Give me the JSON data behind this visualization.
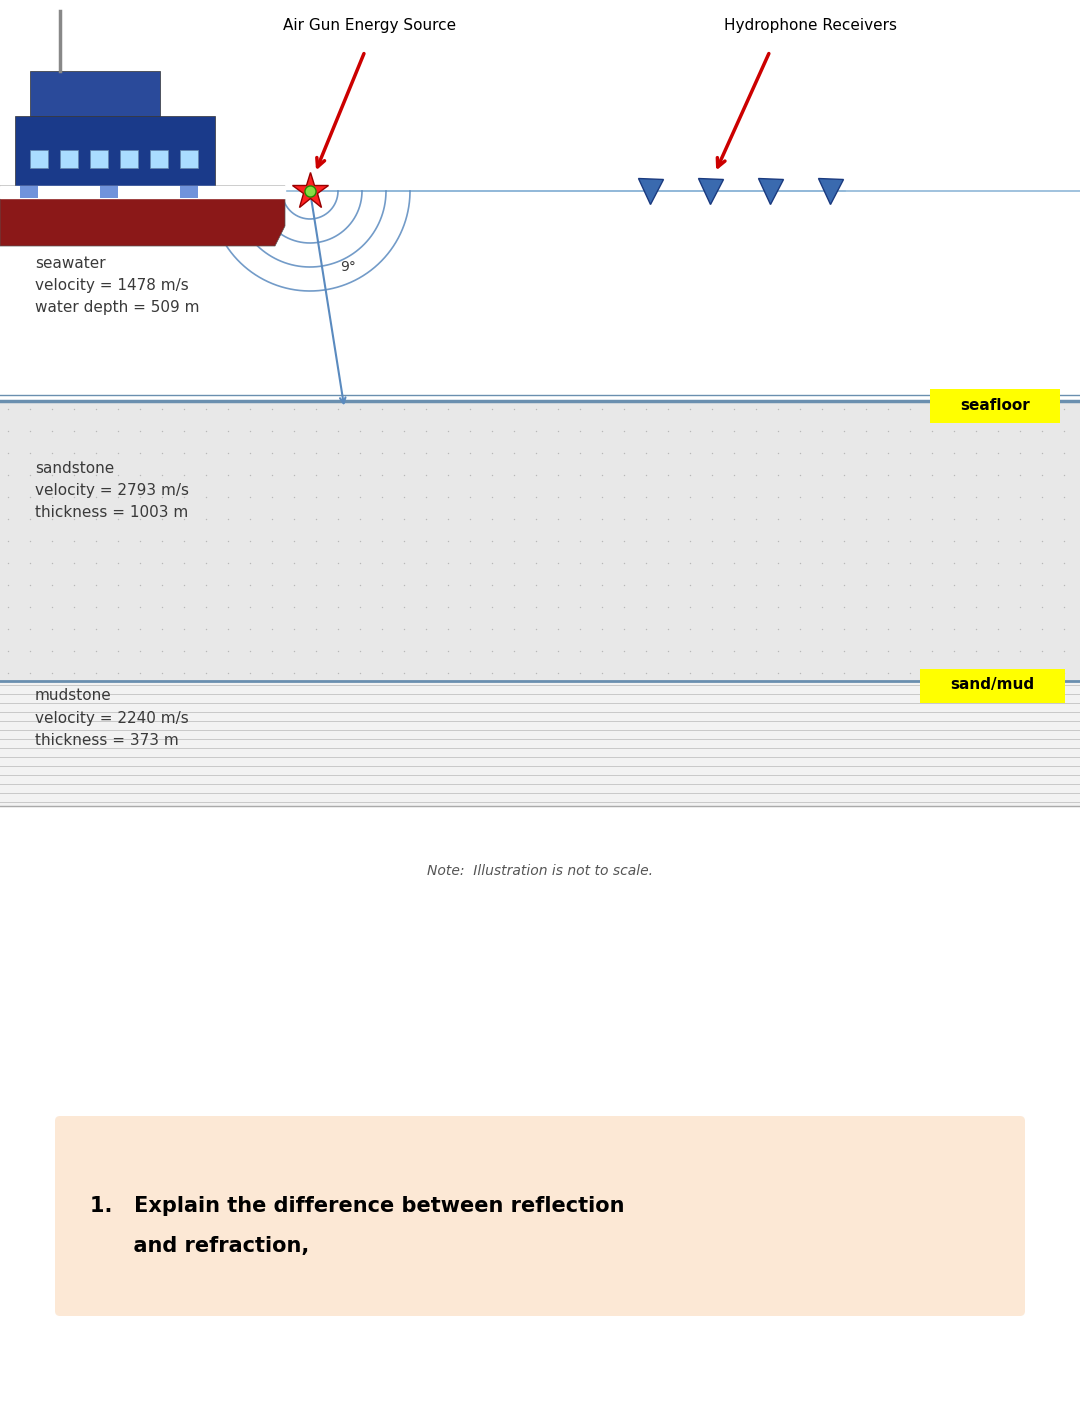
{
  "bg_color": "#ffffff",
  "sandstone_bg": "#e8e8e8",
  "sandstone_dot": "#b8b8b8",
  "mudstone_bg": "#f2f2f2",
  "mudstone_line": "#c8c8c8",
  "seafloor_line": "#6a8faf",
  "boundary_line": "#6a8faf",
  "seawater_label": "seawater\nvelocity = 1478 m/s\nwater depth = 509 m",
  "sandstone_label": "sandstone\nvelocity = 2793 m/s\nthickness = 1003 m",
  "mudstone_label": "mudstone\nvelocity = 2240 m/s\nthickness = 373 m",
  "airgun_label": "Air Gun Energy Source",
  "hydrophone_label": "Hydrophone Receivers",
  "seafloor_tag": "seafloor",
  "sandmud_tag": "sand/mud",
  "note_text": "Note:  Illustration is not to scale.",
  "question_line1": "1.   Explain the difference between reflection",
  "question_line2": "      and refraction,",
  "question_bg": "#fce8d5",
  "angle_label": "9°",
  "label_color": "#3a3a3a",
  "tag_yellow": "#ffff00",
  "arrow_color": "#cc0000",
  "receiver_color": "#3a6aaf",
  "wave_color": "#5a8abf",
  "surface_line_color": "#90b8d8",
  "water_bg": "#ffffff"
}
